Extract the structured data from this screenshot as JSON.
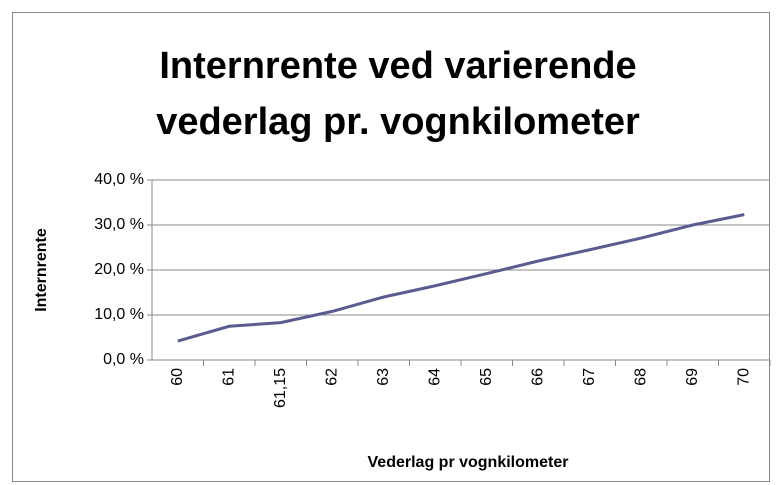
{
  "chart_data": {
    "type": "line",
    "title": "Internrente ved varierende vederlag pr. vognkilometer",
    "x_label": "Vederlag pr vognkilometer",
    "y_label": "Internrente",
    "categories": [
      "60",
      "61",
      "61,15",
      "62",
      "63",
      "64",
      "65",
      "66",
      "67",
      "68",
      "69",
      "70"
    ],
    "series": [
      {
        "name": "Internrente",
        "color": "#5b5b8f",
        "values": [
          4.2,
          7.5,
          8.3,
          10.8,
          14.0,
          16.5,
          19.2,
          22.0,
          24.5,
          27.1,
          30.0,
          32.3
        ]
      }
    ],
    "ylim": [
      0,
      40
    ],
    "yticks": [
      {
        "value": 0,
        "label": "0,0 %"
      },
      {
        "value": 10,
        "label": "10,0 %"
      },
      {
        "value": 20,
        "label": "20,0 %"
      },
      {
        "value": 30,
        "label": "30,0 %"
      },
      {
        "value": 40,
        "label": "40,0 %"
      }
    ],
    "grid": true
  }
}
